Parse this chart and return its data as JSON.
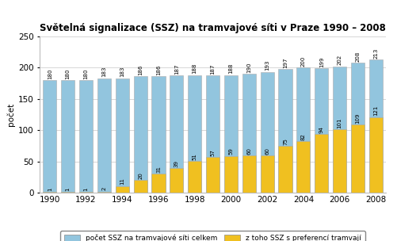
{
  "title": "Světelná signalizace (SSZ) na tramvajové síti v Praze 1990 – 2008",
  "ylabel": "počet",
  "years": [
    1990,
    1991,
    1992,
    1993,
    1994,
    1995,
    1996,
    1997,
    1998,
    1999,
    2000,
    2001,
    2002,
    2003,
    2004,
    2005,
    2006,
    2007,
    2008
  ],
  "total": [
    180,
    180,
    180,
    183,
    183,
    186,
    186,
    187,
    188,
    187,
    188,
    190,
    193,
    197,
    200,
    199,
    202,
    208,
    213
  ],
  "preference": [
    1,
    1,
    1,
    2,
    11,
    20,
    31,
    39,
    51,
    57,
    59,
    60,
    60,
    75,
    82,
    94,
    101,
    109,
    121
  ],
  "bar_color_total": "#92C5DE",
  "bar_color_pref": "#F0C020",
  "bar_edge_color": "#aaaaaa",
  "background_color": "#ffffff",
  "plot_bg_color": "#ffffff",
  "ylim": [
    0,
    250
  ],
  "yticks": [
    0,
    50,
    100,
    150,
    200,
    250
  ],
  "xtick_years": [
    1990,
    1992,
    1994,
    1996,
    1998,
    2000,
    2002,
    2004,
    2006,
    2008
  ],
  "legend_label_total": "počet SSZ na tramvajové síti celkem",
  "legend_label_pref": "z toho SSZ s preferencí tramvají",
  "title_fontsize": 8.5,
  "axis_fontsize": 7.5,
  "label_fontsize": 5.0,
  "bar_width": 0.75
}
